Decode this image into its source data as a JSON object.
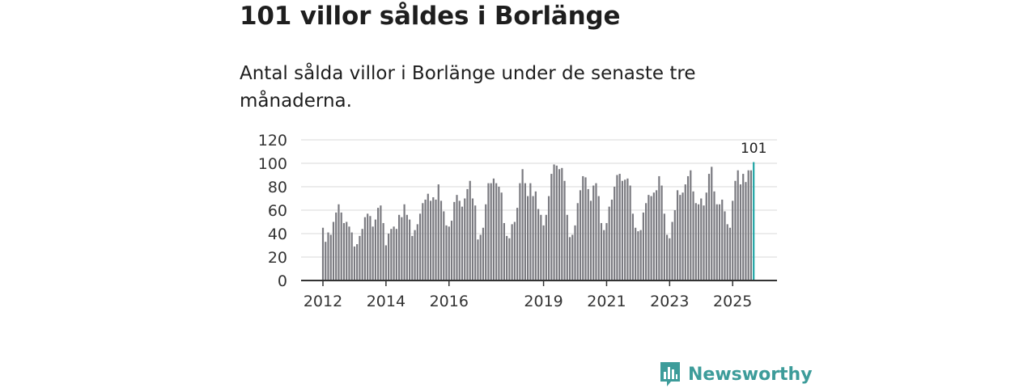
{
  "title": "101 villor såldes i Borlänge",
  "subtitle": "Antal sålda villor i Borlänge under de senaste tre månaderna.",
  "brand": {
    "name": "Newsworthy"
  },
  "colors": {
    "bar": "#7a7a80",
    "highlight": "#20a4a4",
    "grid": "#d9d9d9",
    "axis": "#333333",
    "brand": "#3d9c9a"
  },
  "chart_data": {
    "type": "bar",
    "title": "101 villor såldes i Borlänge",
    "xlabel": "",
    "ylabel": "",
    "ylim": [
      0,
      120
    ],
    "yticks": [
      0,
      20,
      40,
      60,
      80,
      100,
      120
    ],
    "x_tick_labels": [
      {
        "label": "2012",
        "index": 0
      },
      {
        "label": "2014",
        "index": 24
      },
      {
        "label": "2016",
        "index": 48
      },
      {
        "label": "2019",
        "index": 84
      },
      {
        "label": "2021",
        "index": 108
      },
      {
        "label": "2023",
        "index": 132
      },
      {
        "label": "2025",
        "index": 156
      }
    ],
    "values": [
      45,
      33,
      41,
      39,
      50,
      58,
      65,
      58,
      49,
      50,
      46,
      41,
      29,
      31,
      38,
      44,
      54,
      57,
      55,
      46,
      52,
      62,
      64,
      49,
      30,
      40,
      44,
      46,
      44,
      56,
      54,
      65,
      56,
      52,
      38,
      43,
      48,
      57,
      66,
      69,
      74,
      68,
      71,
      69,
      82,
      68,
      59,
      47,
      46,
      51,
      67,
      73,
      68,
      63,
      70,
      78,
      85,
      70,
      64,
      35,
      39,
      45,
      65,
      83,
      83,
      87,
      83,
      80,
      75,
      49,
      38,
      36,
      48,
      50,
      62,
      83,
      95,
      83,
      72,
      83,
      72,
      76,
      61,
      56,
      47,
      56,
      72,
      91,
      99,
      98,
      95,
      96,
      85,
      56,
      37,
      39,
      47,
      66,
      77,
      89,
      88,
      78,
      68,
      81,
      83,
      72,
      49,
      43,
      49,
      63,
      69,
      80,
      90,
      91,
      85,
      86,
      87,
      81,
      57,
      45,
      42,
      43,
      58,
      66,
      73,
      72,
      75,
      77,
      89,
      81,
      57,
      39,
      36,
      50,
      60,
      77,
      73,
      75,
      82,
      89,
      94,
      76,
      66,
      65,
      70,
      64,
      75,
      91,
      97,
      76,
      65,
      65,
      69,
      59,
      48,
      45,
      68,
      85,
      94,
      82,
      91,
      84,
      94,
      94,
      101
    ],
    "highlight_index": 164,
    "highlight_label": "101"
  }
}
